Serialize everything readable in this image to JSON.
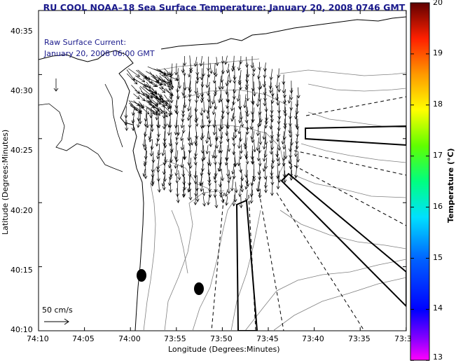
{
  "title": "RU COOL  NOAA–18  Sea Surface Temperature:  January 20, 2008 0746 GMT",
  "annotation": {
    "line1": "Raw Surface Current:",
    "line2": "January 20, 2008 06:00 GMT"
  },
  "scale_label": "50 cm/s",
  "x_axis": {
    "label": "Longitude (Degrees:Minutes)",
    "ticks": [
      "74:10",
      "74:05",
      "74:00",
      "73:55",
      "73:50",
      "73:45",
      "73:40",
      "73:35",
      "73:3"
    ]
  },
  "y_axis": {
    "label": "Latitude (Degrees:Minutes)",
    "ticks": [
      "40:35",
      "40:30",
      "40:25",
      "40:20",
      "40:15",
      "40:10"
    ]
  },
  "colorbar": {
    "label": "Temperature (°C)",
    "ticks": [
      "20",
      "19",
      "18",
      "17",
      "16",
      "15",
      "14",
      "13"
    ],
    "min": 13,
    "max": 20,
    "colors": [
      "#ff00ff",
      "#6000ff",
      "#0000ff",
      "#0070ff",
      "#00d0ff",
      "#00ff90",
      "#30ff00",
      "#b0ff00",
      "#ffff00",
      "#ffa000",
      "#ff3000",
      "#c00000",
      "#600000"
    ]
  }
}
